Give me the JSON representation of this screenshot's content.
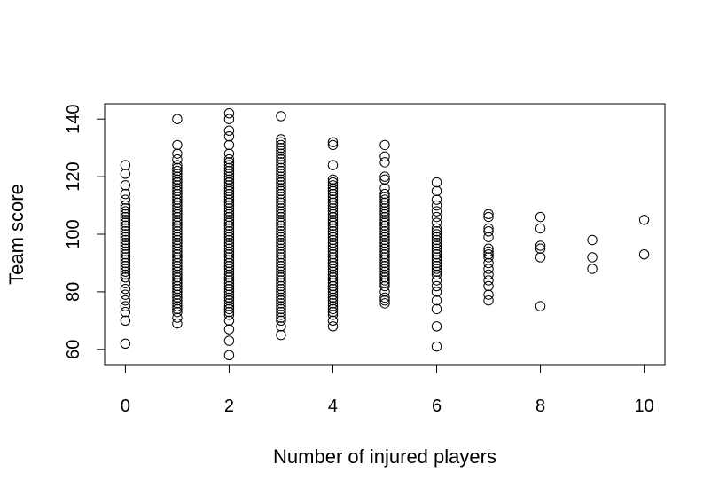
{
  "chart_data": {
    "type": "scatter",
    "xlabel": "Number of injured players",
    "ylabel": "Team score",
    "xlim": [
      -0.4,
      10.4
    ],
    "ylim": [
      54.7,
      145.3
    ],
    "xticks": [
      0,
      2,
      4,
      6,
      8,
      10
    ],
    "yticks": [
      60,
      80,
      100,
      120,
      140
    ],
    "grid": false,
    "points": [
      {
        "x": 0,
        "y": 62
      },
      {
        "x": 0,
        "y": 70
      },
      {
        "x": 0,
        "y": 73
      },
      {
        "x": 0,
        "y": 75
      },
      {
        "x": 0,
        "y": 77
      },
      {
        "x": 0,
        "y": 79
      },
      {
        "x": 0,
        "y": 81
      },
      {
        "x": 0,
        "y": 83
      },
      {
        "x": 0,
        "y": 85
      },
      {
        "x": 0,
        "y": 86
      },
      {
        "x": 0,
        "y": 87
      },
      {
        "x": 0,
        "y": 88
      },
      {
        "x": 0,
        "y": 89
      },
      {
        "x": 0,
        "y": 90
      },
      {
        "x": 0,
        "y": 91
      },
      {
        "x": 0,
        "y": 92
      },
      {
        "x": 0,
        "y": 93
      },
      {
        "x": 0,
        "y": 94
      },
      {
        "x": 0,
        "y": 95
      },
      {
        "x": 0,
        "y": 96
      },
      {
        "x": 0,
        "y": 97
      },
      {
        "x": 0,
        "y": 98
      },
      {
        "x": 0,
        "y": 99
      },
      {
        "x": 0,
        "y": 100
      },
      {
        "x": 0,
        "y": 101
      },
      {
        "x": 0,
        "y": 102
      },
      {
        "x": 0,
        "y": 103
      },
      {
        "x": 0,
        "y": 104
      },
      {
        "x": 0,
        "y": 105
      },
      {
        "x": 0,
        "y": 106
      },
      {
        "x": 0,
        "y": 107
      },
      {
        "x": 0,
        "y": 108
      },
      {
        "x": 0,
        "y": 109
      },
      {
        "x": 0,
        "y": 110
      },
      {
        "x": 0,
        "y": 112
      },
      {
        "x": 0,
        "y": 114
      },
      {
        "x": 0,
        "y": 117
      },
      {
        "x": 0,
        "y": 121
      },
      {
        "x": 0,
        "y": 124
      },
      {
        "x": 1,
        "y": 69
      },
      {
        "x": 1,
        "y": 71
      },
      {
        "x": 1,
        "y": 73
      },
      {
        "x": 1,
        "y": 74
      },
      {
        "x": 1,
        "y": 75
      },
      {
        "x": 1,
        "y": 76
      },
      {
        "x": 1,
        "y": 77
      },
      {
        "x": 1,
        "y": 78
      },
      {
        "x": 1,
        "y": 79
      },
      {
        "x": 1,
        "y": 80
      },
      {
        "x": 1,
        "y": 81
      },
      {
        "x": 1,
        "y": 82
      },
      {
        "x": 1,
        "y": 83
      },
      {
        "x": 1,
        "y": 84
      },
      {
        "x": 1,
        "y": 85
      },
      {
        "x": 1,
        "y": 86
      },
      {
        "x": 1,
        "y": 87
      },
      {
        "x": 1,
        "y": 88
      },
      {
        "x": 1,
        "y": 89
      },
      {
        "x": 1,
        "y": 90
      },
      {
        "x": 1,
        "y": 91
      },
      {
        "x": 1,
        "y": 92
      },
      {
        "x": 1,
        "y": 93
      },
      {
        "x": 1,
        "y": 94
      },
      {
        "x": 1,
        "y": 95
      },
      {
        "x": 1,
        "y": 96
      },
      {
        "x": 1,
        "y": 97
      },
      {
        "x": 1,
        "y": 98
      },
      {
        "x": 1,
        "y": 99
      },
      {
        "x": 1,
        "y": 100
      },
      {
        "x": 1,
        "y": 101
      },
      {
        "x": 1,
        "y": 102
      },
      {
        "x": 1,
        "y": 103
      },
      {
        "x": 1,
        "y": 104
      },
      {
        "x": 1,
        "y": 105
      },
      {
        "x": 1,
        "y": 106
      },
      {
        "x": 1,
        "y": 107
      },
      {
        "x": 1,
        "y": 108
      },
      {
        "x": 1,
        "y": 109
      },
      {
        "x": 1,
        "y": 110
      },
      {
        "x": 1,
        "y": 111
      },
      {
        "x": 1,
        "y": 112
      },
      {
        "x": 1,
        "y": 113
      },
      {
        "x": 1,
        "y": 114
      },
      {
        "x": 1,
        "y": 115
      },
      {
        "x": 1,
        "y": 116
      },
      {
        "x": 1,
        "y": 117
      },
      {
        "x": 1,
        "y": 118
      },
      {
        "x": 1,
        "y": 119
      },
      {
        "x": 1,
        "y": 120
      },
      {
        "x": 1,
        "y": 121
      },
      {
        "x": 1,
        "y": 122
      },
      {
        "x": 1,
        "y": 123
      },
      {
        "x": 1,
        "y": 124
      },
      {
        "x": 1,
        "y": 126
      },
      {
        "x": 1,
        "y": 128
      },
      {
        "x": 1,
        "y": 131
      },
      {
        "x": 1,
        "y": 140
      },
      {
        "x": 2,
        "y": 58
      },
      {
        "x": 2,
        "y": 63
      },
      {
        "x": 2,
        "y": 67
      },
      {
        "x": 2,
        "y": 70
      },
      {
        "x": 2,
        "y": 72
      },
      {
        "x": 2,
        "y": 73
      },
      {
        "x": 2,
        "y": 74
      },
      {
        "x": 2,
        "y": 75
      },
      {
        "x": 2,
        "y": 76
      },
      {
        "x": 2,
        "y": 77
      },
      {
        "x": 2,
        "y": 78
      },
      {
        "x": 2,
        "y": 79
      },
      {
        "x": 2,
        "y": 80
      },
      {
        "x": 2,
        "y": 81
      },
      {
        "x": 2,
        "y": 82
      },
      {
        "x": 2,
        "y": 83
      },
      {
        "x": 2,
        "y": 84
      },
      {
        "x": 2,
        "y": 85
      },
      {
        "x": 2,
        "y": 86
      },
      {
        "x": 2,
        "y": 87
      },
      {
        "x": 2,
        "y": 88
      },
      {
        "x": 2,
        "y": 89
      },
      {
        "x": 2,
        "y": 90
      },
      {
        "x": 2,
        "y": 91
      },
      {
        "x": 2,
        "y": 92
      },
      {
        "x": 2,
        "y": 93
      },
      {
        "x": 2,
        "y": 94
      },
      {
        "x": 2,
        "y": 95
      },
      {
        "x": 2,
        "y": 96
      },
      {
        "x": 2,
        "y": 97
      },
      {
        "x": 2,
        "y": 98
      },
      {
        "x": 2,
        "y": 99
      },
      {
        "x": 2,
        "y": 100
      },
      {
        "x": 2,
        "y": 101
      },
      {
        "x": 2,
        "y": 102
      },
      {
        "x": 2,
        "y": 103
      },
      {
        "x": 2,
        "y": 104
      },
      {
        "x": 2,
        "y": 105
      },
      {
        "x": 2,
        "y": 106
      },
      {
        "x": 2,
        "y": 107
      },
      {
        "x": 2,
        "y": 108
      },
      {
        "x": 2,
        "y": 109
      },
      {
        "x": 2,
        "y": 110
      },
      {
        "x": 2,
        "y": 111
      },
      {
        "x": 2,
        "y": 112
      },
      {
        "x": 2,
        "y": 113
      },
      {
        "x": 2,
        "y": 114
      },
      {
        "x": 2,
        "y": 115
      },
      {
        "x": 2,
        "y": 116
      },
      {
        "x": 2,
        "y": 117
      },
      {
        "x": 2,
        "y": 118
      },
      {
        "x": 2,
        "y": 119
      },
      {
        "x": 2,
        "y": 120
      },
      {
        "x": 2,
        "y": 121
      },
      {
        "x": 2,
        "y": 122
      },
      {
        "x": 2,
        "y": 123
      },
      {
        "x": 2,
        "y": 124
      },
      {
        "x": 2,
        "y": 125
      },
      {
        "x": 2,
        "y": 126
      },
      {
        "x": 2,
        "y": 128
      },
      {
        "x": 2,
        "y": 131
      },
      {
        "x": 2,
        "y": 134
      },
      {
        "x": 2,
        "y": 136
      },
      {
        "x": 2,
        "y": 140
      },
      {
        "x": 2,
        "y": 142
      },
      {
        "x": 3,
        "y": 65
      },
      {
        "x": 3,
        "y": 68
      },
      {
        "x": 3,
        "y": 70
      },
      {
        "x": 3,
        "y": 71
      },
      {
        "x": 3,
        "y": 72
      },
      {
        "x": 3,
        "y": 73
      },
      {
        "x": 3,
        "y": 74
      },
      {
        "x": 3,
        "y": 75
      },
      {
        "x": 3,
        "y": 76
      },
      {
        "x": 3,
        "y": 77
      },
      {
        "x": 3,
        "y": 78
      },
      {
        "x": 3,
        "y": 79
      },
      {
        "x": 3,
        "y": 80
      },
      {
        "x": 3,
        "y": 81
      },
      {
        "x": 3,
        "y": 82
      },
      {
        "x": 3,
        "y": 83
      },
      {
        "x": 3,
        "y": 84
      },
      {
        "x": 3,
        "y": 85
      },
      {
        "x": 3,
        "y": 86
      },
      {
        "x": 3,
        "y": 87
      },
      {
        "x": 3,
        "y": 88
      },
      {
        "x": 3,
        "y": 89
      },
      {
        "x": 3,
        "y": 90
      },
      {
        "x": 3,
        "y": 91
      },
      {
        "x": 3,
        "y": 92
      },
      {
        "x": 3,
        "y": 93
      },
      {
        "x": 3,
        "y": 94
      },
      {
        "x": 3,
        "y": 95
      },
      {
        "x": 3,
        "y": 96
      },
      {
        "x": 3,
        "y": 97
      },
      {
        "x": 3,
        "y": 98
      },
      {
        "x": 3,
        "y": 99
      },
      {
        "x": 3,
        "y": 100
      },
      {
        "x": 3,
        "y": 101
      },
      {
        "x": 3,
        "y": 102
      },
      {
        "x": 3,
        "y": 103
      },
      {
        "x": 3,
        "y": 104
      },
      {
        "x": 3,
        "y": 105
      },
      {
        "x": 3,
        "y": 106
      },
      {
        "x": 3,
        "y": 107
      },
      {
        "x": 3,
        "y": 108
      },
      {
        "x": 3,
        "y": 109
      },
      {
        "x": 3,
        "y": 110
      },
      {
        "x": 3,
        "y": 111
      },
      {
        "x": 3,
        "y": 112
      },
      {
        "x": 3,
        "y": 113
      },
      {
        "x": 3,
        "y": 114
      },
      {
        "x": 3,
        "y": 115
      },
      {
        "x": 3,
        "y": 116
      },
      {
        "x": 3,
        "y": 117
      },
      {
        "x": 3,
        "y": 118
      },
      {
        "x": 3,
        "y": 119
      },
      {
        "x": 3,
        "y": 120
      },
      {
        "x": 3,
        "y": 121
      },
      {
        "x": 3,
        "y": 122
      },
      {
        "x": 3,
        "y": 123
      },
      {
        "x": 3,
        "y": 124
      },
      {
        "x": 3,
        "y": 125
      },
      {
        "x": 3,
        "y": 126
      },
      {
        "x": 3,
        "y": 127
      },
      {
        "x": 3,
        "y": 128
      },
      {
        "x": 3,
        "y": 129
      },
      {
        "x": 3,
        "y": 130
      },
      {
        "x": 3,
        "y": 131
      },
      {
        "x": 3,
        "y": 132
      },
      {
        "x": 3,
        "y": 133
      },
      {
        "x": 3,
        "y": 141
      },
      {
        "x": 4,
        "y": 68
      },
      {
        "x": 4,
        "y": 70
      },
      {
        "x": 4,
        "y": 72
      },
      {
        "x": 4,
        "y": 73
      },
      {
        "x": 4,
        "y": 74
      },
      {
        "x": 4,
        "y": 75
      },
      {
        "x": 4,
        "y": 76
      },
      {
        "x": 4,
        "y": 77
      },
      {
        "x": 4,
        "y": 78
      },
      {
        "x": 4,
        "y": 79
      },
      {
        "x": 4,
        "y": 80
      },
      {
        "x": 4,
        "y": 81
      },
      {
        "x": 4,
        "y": 82
      },
      {
        "x": 4,
        "y": 83
      },
      {
        "x": 4,
        "y": 84
      },
      {
        "x": 4,
        "y": 85
      },
      {
        "x": 4,
        "y": 86
      },
      {
        "x": 4,
        "y": 87
      },
      {
        "x": 4,
        "y": 88
      },
      {
        "x": 4,
        "y": 89
      },
      {
        "x": 4,
        "y": 90
      },
      {
        "x": 4,
        "y": 91
      },
      {
        "x": 4,
        "y": 92
      },
      {
        "x": 4,
        "y": 93
      },
      {
        "x": 4,
        "y": 94
      },
      {
        "x": 4,
        "y": 95
      },
      {
        "x": 4,
        "y": 96
      },
      {
        "x": 4,
        "y": 97
      },
      {
        "x": 4,
        "y": 98
      },
      {
        "x": 4,
        "y": 99
      },
      {
        "x": 4,
        "y": 100
      },
      {
        "x": 4,
        "y": 101
      },
      {
        "x": 4,
        "y": 102
      },
      {
        "x": 4,
        "y": 103
      },
      {
        "x": 4,
        "y": 104
      },
      {
        "x": 4,
        "y": 105
      },
      {
        "x": 4,
        "y": 106
      },
      {
        "x": 4,
        "y": 107
      },
      {
        "x": 4,
        "y": 108
      },
      {
        "x": 4,
        "y": 109
      },
      {
        "x": 4,
        "y": 110
      },
      {
        "x": 4,
        "y": 111
      },
      {
        "x": 4,
        "y": 112
      },
      {
        "x": 4,
        "y": 113
      },
      {
        "x": 4,
        "y": 114
      },
      {
        "x": 4,
        "y": 115
      },
      {
        "x": 4,
        "y": 116
      },
      {
        "x": 4,
        "y": 117
      },
      {
        "x": 4,
        "y": 118
      },
      {
        "x": 4,
        "y": 119
      },
      {
        "x": 4,
        "y": 124
      },
      {
        "x": 4,
        "y": 131
      },
      {
        "x": 4,
        "y": 132
      },
      {
        "x": 5,
        "y": 76
      },
      {
        "x": 5,
        "y": 77
      },
      {
        "x": 5,
        "y": 78
      },
      {
        "x": 5,
        "y": 80
      },
      {
        "x": 5,
        "y": 82
      },
      {
        "x": 5,
        "y": 83
      },
      {
        "x": 5,
        "y": 84
      },
      {
        "x": 5,
        "y": 85
      },
      {
        "x": 5,
        "y": 86
      },
      {
        "x": 5,
        "y": 87
      },
      {
        "x": 5,
        "y": 88
      },
      {
        "x": 5,
        "y": 89
      },
      {
        "x": 5,
        "y": 90
      },
      {
        "x": 5,
        "y": 91
      },
      {
        "x": 5,
        "y": 92
      },
      {
        "x": 5,
        "y": 93
      },
      {
        "x": 5,
        "y": 94
      },
      {
        "x": 5,
        "y": 95
      },
      {
        "x": 5,
        "y": 96
      },
      {
        "x": 5,
        "y": 97
      },
      {
        "x": 5,
        "y": 98
      },
      {
        "x": 5,
        "y": 99
      },
      {
        "x": 5,
        "y": 100
      },
      {
        "x": 5,
        "y": 101
      },
      {
        "x": 5,
        "y": 102
      },
      {
        "x": 5,
        "y": 103
      },
      {
        "x": 5,
        "y": 104
      },
      {
        "x": 5,
        "y": 105
      },
      {
        "x": 5,
        "y": 106
      },
      {
        "x": 5,
        "y": 107
      },
      {
        "x": 5,
        "y": 108
      },
      {
        "x": 5,
        "y": 109
      },
      {
        "x": 5,
        "y": 110
      },
      {
        "x": 5,
        "y": 111
      },
      {
        "x": 5,
        "y": 112
      },
      {
        "x": 5,
        "y": 113
      },
      {
        "x": 5,
        "y": 114
      },
      {
        "x": 5,
        "y": 116
      },
      {
        "x": 5,
        "y": 119
      },
      {
        "x": 5,
        "y": 120
      },
      {
        "x": 5,
        "y": 125
      },
      {
        "x": 5,
        "y": 127
      },
      {
        "x": 5,
        "y": 131
      },
      {
        "x": 6,
        "y": 61
      },
      {
        "x": 6,
        "y": 68
      },
      {
        "x": 6,
        "y": 74
      },
      {
        "x": 6,
        "y": 77
      },
      {
        "x": 6,
        "y": 80
      },
      {
        "x": 6,
        "y": 82
      },
      {
        "x": 6,
        "y": 84
      },
      {
        "x": 6,
        "y": 86
      },
      {
        "x": 6,
        "y": 87
      },
      {
        "x": 6,
        "y": 88
      },
      {
        "x": 6,
        "y": 89
      },
      {
        "x": 6,
        "y": 90
      },
      {
        "x": 6,
        "y": 91
      },
      {
        "x": 6,
        "y": 92
      },
      {
        "x": 6,
        "y": 93
      },
      {
        "x": 6,
        "y": 94
      },
      {
        "x": 6,
        "y": 95
      },
      {
        "x": 6,
        "y": 96
      },
      {
        "x": 6,
        "y": 97
      },
      {
        "x": 6,
        "y": 98
      },
      {
        "x": 6,
        "y": 99
      },
      {
        "x": 6,
        "y": 100
      },
      {
        "x": 6,
        "y": 101
      },
      {
        "x": 6,
        "y": 102
      },
      {
        "x": 6,
        "y": 104
      },
      {
        "x": 6,
        "y": 106
      },
      {
        "x": 6,
        "y": 108
      },
      {
        "x": 6,
        "y": 110
      },
      {
        "x": 6,
        "y": 112
      },
      {
        "x": 6,
        "y": 115
      },
      {
        "x": 6,
        "y": 118
      },
      {
        "x": 7,
        "y": 77
      },
      {
        "x": 7,
        "y": 79
      },
      {
        "x": 7,
        "y": 82
      },
      {
        "x": 7,
        "y": 84
      },
      {
        "x": 7,
        "y": 86
      },
      {
        "x": 7,
        "y": 88
      },
      {
        "x": 7,
        "y": 90
      },
      {
        "x": 7,
        "y": 92
      },
      {
        "x": 7,
        "y": 93
      },
      {
        "x": 7,
        "y": 94
      },
      {
        "x": 7,
        "y": 95
      },
      {
        "x": 7,
        "y": 99
      },
      {
        "x": 7,
        "y": 101
      },
      {
        "x": 7,
        "y": 102
      },
      {
        "x": 7,
        "y": 106
      },
      {
        "x": 7,
        "y": 107
      },
      {
        "x": 8,
        "y": 75
      },
      {
        "x": 8,
        "y": 92
      },
      {
        "x": 8,
        "y": 95
      },
      {
        "x": 8,
        "y": 96
      },
      {
        "x": 8,
        "y": 102
      },
      {
        "x": 8,
        "y": 106
      },
      {
        "x": 9,
        "y": 88
      },
      {
        "x": 9,
        "y": 92
      },
      {
        "x": 9,
        "y": 98
      },
      {
        "x": 10,
        "y": 93
      },
      {
        "x": 10,
        "y": 105
      }
    ]
  }
}
